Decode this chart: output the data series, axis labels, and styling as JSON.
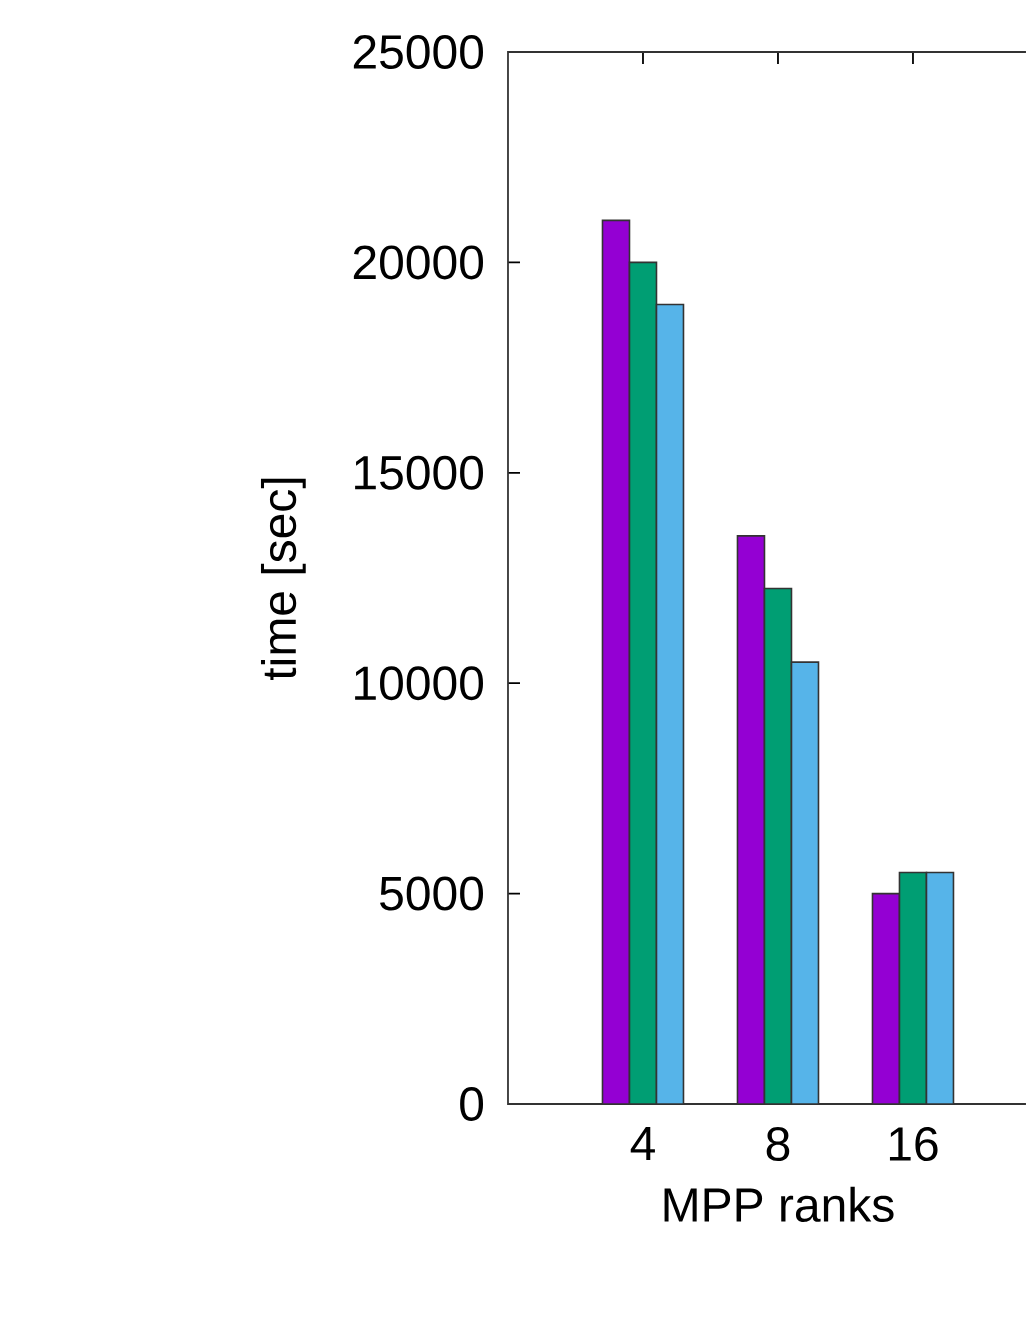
{
  "chart_data": {
    "type": "bar",
    "xlabel": "MPP ranks",
    "ylabel": "time [sec]",
    "categories": [
      "4",
      "8",
      "16"
    ],
    "series": [
      {
        "color": "#9400d3",
        "values": [
          21000,
          13500,
          5000
        ]
      },
      {
        "color": "#009e73",
        "values": [
          20000,
          12250,
          5500
        ]
      },
      {
        "color": "#56b4e9",
        "values": [
          19000,
          10500,
          5500
        ]
      }
    ],
    "ylim": [
      0,
      25000
    ],
    "yticks": [
      0,
      5000,
      10000,
      15000,
      20000,
      25000
    ]
  }
}
